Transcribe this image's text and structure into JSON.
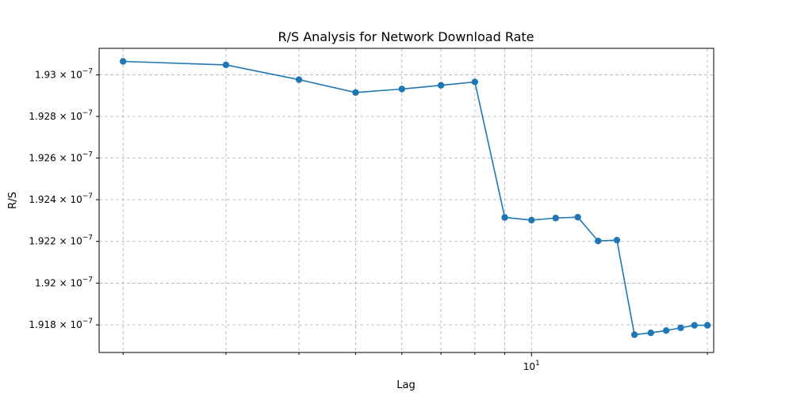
{
  "chart_data": {
    "type": "line",
    "title": "R/S Analysis for Network Download Rate",
    "xlabel": "Lag",
    "ylabel": "R/S",
    "xscale": "log",
    "yscale": "log",
    "xlim": [
      1.82,
      20.5
    ],
    "ylim": [
      1.91668e-07,
      1.93128e-07
    ],
    "grid": true,
    "legend": "none",
    "color": "#1f77b4",
    "marker": "circle",
    "x_ticks": [
      {
        "value": 2,
        "label": ""
      },
      {
        "value": 3,
        "label": ""
      },
      {
        "value": 4,
        "label": ""
      },
      {
        "value": 5,
        "label": ""
      },
      {
        "value": 6,
        "label": ""
      },
      {
        "value": 7,
        "label": ""
      },
      {
        "value": 8,
        "label": ""
      },
      {
        "value": 9,
        "label": ""
      },
      {
        "value": 10,
        "label": "10",
        "exponent": "1"
      },
      {
        "value": 20,
        "label": ""
      }
    ],
    "y_ticks": [
      {
        "value": 1.918e-07,
        "mantissa": "1.918",
        "base": "10",
        "exponent": "−7"
      },
      {
        "value": 1.92e-07,
        "mantissa": "1.92",
        "base": "10",
        "exponent": "−7"
      },
      {
        "value": 1.922e-07,
        "mantissa": "1.922",
        "base": "10",
        "exponent": "−7"
      },
      {
        "value": 1.924e-07,
        "mantissa": "1.924",
        "base": "10",
        "exponent": "−7"
      },
      {
        "value": 1.926e-07,
        "mantissa": "1.926",
        "base": "10",
        "exponent": "−7"
      },
      {
        "value": 1.928e-07,
        "mantissa": "1.928",
        "base": "10",
        "exponent": "−7"
      },
      {
        "value": 1.93e-07,
        "mantissa": "1.93",
        "base": "10",
        "exponent": "−7"
      }
    ],
    "series": [
      {
        "x": [
          2,
          3,
          4,
          5,
          6,
          7,
          8,
          9,
          10,
          11,
          12,
          13,
          14,
          15,
          16,
          17,
          18,
          19,
          20
        ],
        "y": [
          1.93065e-07,
          1.93048e-07,
          1.92977e-07,
          1.92915e-07,
          1.92932e-07,
          1.9295e-07,
          1.92966e-07,
          1.92315e-07,
          1.92302e-07,
          1.92312e-07,
          1.92316e-07,
          1.92202e-07,
          1.92206e-07,
          1.91753e-07,
          1.91762e-07,
          1.91773e-07,
          1.91786e-07,
          1.91798e-07,
          1.91798e-07
        ]
      }
    ]
  }
}
